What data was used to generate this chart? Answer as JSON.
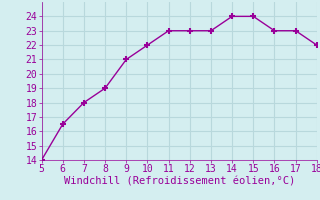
{
  "x": [
    5,
    6,
    7,
    8,
    9,
    10,
    11,
    12,
    13,
    14,
    15,
    16,
    17,
    18
  ],
  "y": [
    14,
    16.5,
    18,
    19,
    21,
    22,
    23,
    23,
    23,
    24,
    24,
    23,
    23,
    22
  ],
  "line_color": "#990099",
  "marker": "+",
  "marker_size": 5,
  "marker_color": "#990099",
  "xlabel": "Windchill (Refroidissement éolien,°C)",
  "xlabel_color": "#990099",
  "xlabel_fontsize": 7.5,
  "bg_color": "#d4eef0",
  "grid_color": "#b8d8dc",
  "tick_color": "#990099",
  "tick_fontsize": 7,
  "xlim": [
    5,
    18
  ],
  "ylim": [
    14,
    25
  ],
  "xticks": [
    5,
    6,
    7,
    8,
    9,
    10,
    11,
    12,
    13,
    14,
    15,
    16,
    17,
    18
  ],
  "yticks": [
    14,
    15,
    16,
    17,
    18,
    19,
    20,
    21,
    22,
    23,
    24
  ]
}
